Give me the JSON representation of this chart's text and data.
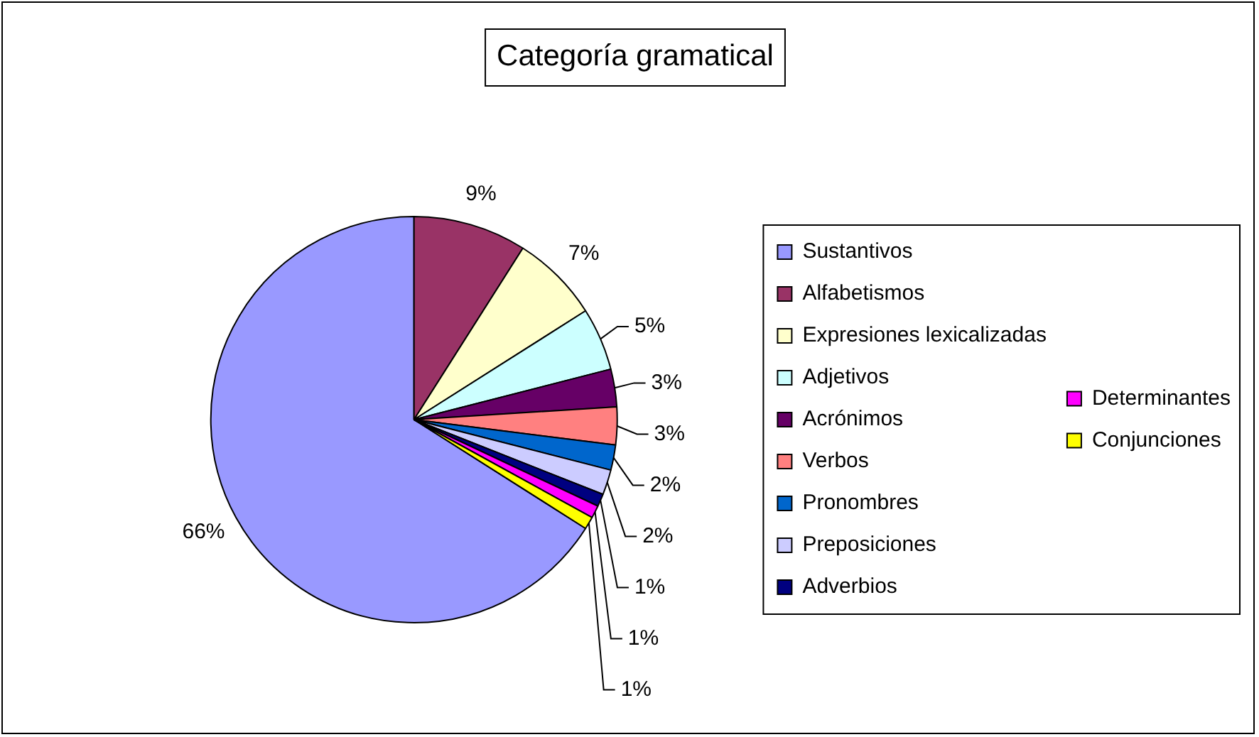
{
  "chart_data": {
    "type": "pie",
    "title": "Categoría gramatical",
    "categories": [
      "Sustantivos",
      "Alfabetismos",
      "Expresiones lexicalizadas",
      "Adjetivos",
      "Acrónimos",
      "Verbos",
      "Pronombres",
      "Preposiciones",
      "Adverbios",
      "Determinantes",
      "Conjunciones"
    ],
    "values": [
      66,
      9,
      7,
      5,
      3,
      3,
      2,
      2,
      1,
      1,
      1
    ],
    "colors": [
      "#9999ff",
      "#993366",
      "#ffffcc",
      "#ccffff",
      "#660066",
      "#ff8080",
      "#0066cc",
      "#ccccff",
      "#000080",
      "#ff00ff",
      "#ffff00"
    ],
    "value_labels": [
      "66%",
      "9%",
      "7%",
      "5%",
      "3%",
      "3%",
      "2%",
      "2%",
      "1%",
      "1%",
      "1%"
    ],
    "legend": "right"
  }
}
